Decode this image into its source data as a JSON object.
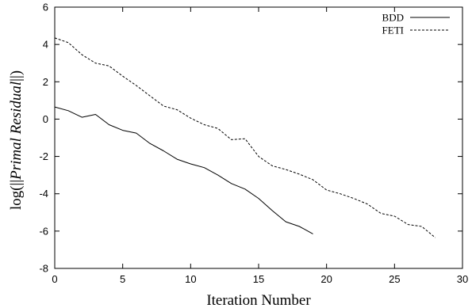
{
  "chart_data": {
    "type": "line",
    "title": "",
    "xlabel": "Iteration Number",
    "ylabel": {
      "prefix": "log(||",
      "italic": "Primal Residual",
      "suffix": "||)"
    },
    "xlim": [
      0,
      30
    ],
    "ylim": [
      -8,
      6
    ],
    "x_ticks": [
      0,
      5,
      10,
      15,
      20,
      25,
      30
    ],
    "y_ticks": [
      6,
      4,
      2,
      0,
      -2,
      -4,
      -6,
      -8
    ],
    "grid": false,
    "legend_position": "top-right",
    "series": [
      {
        "name": "BDD",
        "style": "solid",
        "color": "#000000",
        "x": [
          0,
          1,
          2,
          3,
          4,
          5,
          6,
          7,
          8,
          9,
          10,
          11,
          12,
          13,
          14,
          15,
          16,
          17,
          18,
          19
        ],
        "y": [
          0.65,
          0.45,
          0.1,
          0.25,
          -0.3,
          -0.6,
          -0.75,
          -1.3,
          -1.7,
          -2.15,
          -2.4,
          -2.6,
          -3.0,
          -3.45,
          -3.75,
          -4.25,
          -4.9,
          -5.5,
          -5.75,
          -6.15
        ]
      },
      {
        "name": "FETI",
        "style": "dashed",
        "color": "#000000",
        "x": [
          0,
          1,
          2,
          3,
          4,
          5,
          6,
          7,
          8,
          9,
          10,
          11,
          12,
          13,
          14,
          15,
          16,
          17,
          18,
          19,
          20,
          21,
          22,
          23,
          24,
          25,
          26,
          27,
          28
        ],
        "y": [
          4.35,
          4.1,
          3.45,
          3.0,
          2.85,
          2.3,
          1.8,
          1.25,
          0.7,
          0.5,
          0.05,
          -0.3,
          -0.5,
          -1.1,
          -1.05,
          -2.0,
          -2.5,
          -2.7,
          -2.95,
          -3.25,
          -3.8,
          -4.0,
          -4.25,
          -4.55,
          -5.05,
          -5.2,
          -5.65,
          -5.75,
          -6.35
        ]
      }
    ]
  }
}
